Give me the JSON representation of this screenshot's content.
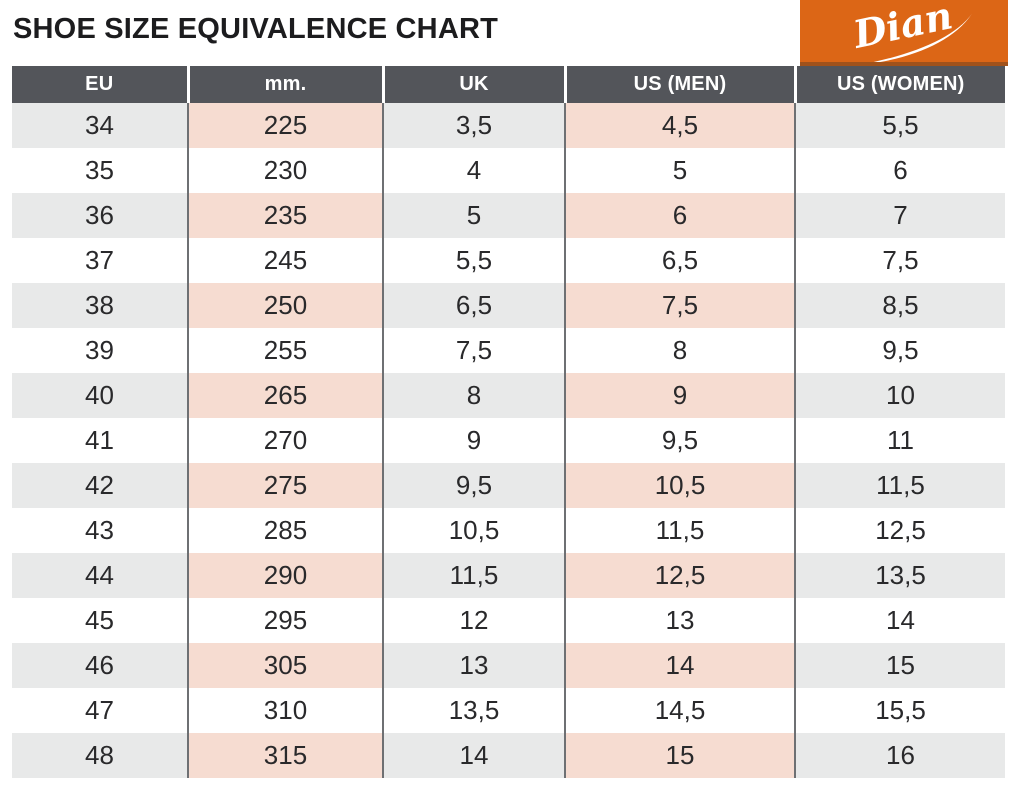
{
  "page": {
    "title": "SHOE SIZE EQUIVALENCE CHART",
    "logo_text": "Dian"
  },
  "colors": {
    "brand_orange": "#DC6616",
    "brand_orange_shadow": "#A0521B",
    "header_gray": "#53555A",
    "row_stripe_gray": "#E8E9E9",
    "row_stripe_pink": "#F6DCD1",
    "column_divider_gray": "#6E7073",
    "text_dark": "#29292B",
    "header_text": "#FFFFFF",
    "logo_text_color": "#FFFFFF"
  },
  "chart_data": {
    "type": "table",
    "title": "SHOE SIZE EQUIVALENCE CHART",
    "columns": [
      "EU",
      "mm.",
      "UK",
      "US (MEN)",
      "US (WOMEN)"
    ],
    "highlighted_columns": [
      "mm.",
      "US (MEN)"
    ],
    "rows": [
      [
        "34",
        "225",
        "3,5",
        "4,5",
        "5,5"
      ],
      [
        "35",
        "230",
        "4",
        "5",
        "6"
      ],
      [
        "36",
        "235",
        "5",
        "6",
        "7"
      ],
      [
        "37",
        "245",
        "5,5",
        "6,5",
        "7,5"
      ],
      [
        "38",
        "250",
        "6,5",
        "7,5",
        "8,5"
      ],
      [
        "39",
        "255",
        "7,5",
        "8",
        "9,5"
      ],
      [
        "40",
        "265",
        "8",
        "9",
        "10"
      ],
      [
        "41",
        "270",
        "9",
        "9,5",
        "11"
      ],
      [
        "42",
        "275",
        "9,5",
        "10,5",
        "11,5"
      ],
      [
        "43",
        "285",
        "10,5",
        "11,5",
        "12,5"
      ],
      [
        "44",
        "290",
        "11,5",
        "12,5",
        "13,5"
      ],
      [
        "45",
        "295",
        "12",
        "13",
        "14"
      ],
      [
        "46",
        "305",
        "13",
        "14",
        "15"
      ],
      [
        "47",
        "310",
        "13,5",
        "14,5",
        "15,5"
      ],
      [
        "48",
        "315",
        "14",
        "15",
        "16"
      ]
    ]
  }
}
